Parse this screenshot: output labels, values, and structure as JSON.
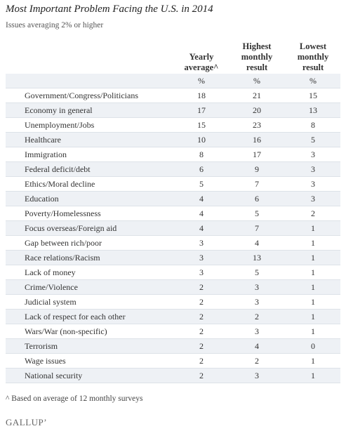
{
  "header": {
    "title": "Most Important Problem Facing the U.S. in 2014",
    "subtitle": "Issues averaging 2% or higher"
  },
  "table": {
    "columns": [
      "Yearly average^",
      "Highest monthly result",
      "Lowest monthly result"
    ],
    "units": [
      "%",
      "%",
      "%"
    ],
    "rows": [
      [
        "Government/Congress/Politicians",
        18,
        21,
        15
      ],
      [
        "Economy in general",
        17,
        20,
        13
      ],
      [
        "Unemployment/Jobs",
        15,
        23,
        8
      ],
      [
        "Healthcare",
        10,
        16,
        5
      ],
      [
        "Immigration",
        8,
        17,
        3
      ],
      [
        "Federal deficit/debt",
        6,
        9,
        3
      ],
      [
        "Ethics/Moral decline",
        5,
        7,
        3
      ],
      [
        "Education",
        4,
        6,
        3
      ],
      [
        "Poverty/Homelessness",
        4,
        5,
        2
      ],
      [
        "Focus overseas/Foreign aid",
        4,
        7,
        1
      ],
      [
        "Gap between rich/poor",
        3,
        4,
        1
      ],
      [
        "Race relations/Racism",
        3,
        13,
        1
      ],
      [
        "Lack of money",
        3,
        5,
        1
      ],
      [
        "Crime/Violence",
        2,
        3,
        1
      ],
      [
        "Judicial system",
        2,
        3,
        1
      ],
      [
        "Lack of respect for each other",
        2,
        2,
        1
      ],
      [
        "Wars/War (non-specific)",
        2,
        3,
        1
      ],
      [
        "Terrorism",
        2,
        4,
        0
      ],
      [
        "Wage issues",
        2,
        2,
        1
      ],
      [
        "National security",
        2,
        3,
        1
      ]
    ]
  },
  "footnote": "^ Based on average of 12 monthly surveys",
  "logo": "GALLUP’"
}
